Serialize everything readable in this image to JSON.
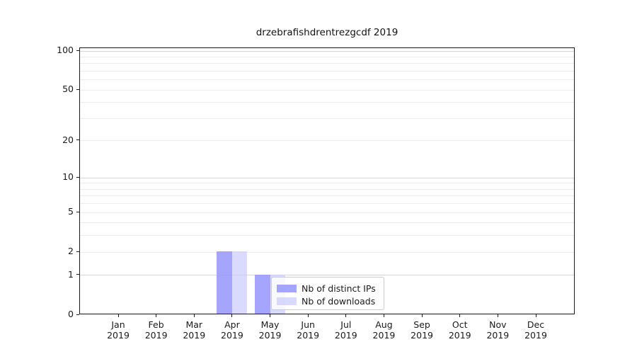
{
  "chart_data": {
    "type": "bar",
    "title": "drzebrafishdrentrezgcdf 2019",
    "x": {
      "months": [
        "Jan",
        "Feb",
        "Mar",
        "Apr",
        "May",
        "Jun",
        "Jul",
        "Aug",
        "Sep",
        "Oct",
        "Nov",
        "Dec"
      ],
      "year": "2019"
    },
    "series": [
      {
        "name": "Nb of distinct IPs",
        "color": "rgba(153,153,255,0.88)",
        "values": [
          0,
          0,
          0,
          2,
          1,
          0,
          0,
          0,
          0,
          0,
          0,
          0
        ]
      },
      {
        "name": "Nb of downloads",
        "color": "rgba(204,204,255,0.72)",
        "values": [
          0,
          0,
          0,
          2,
          1,
          0,
          0,
          0,
          0,
          0,
          0,
          0
        ]
      }
    ],
    "y_axis": {
      "scale": "log10(1+value)",
      "labeled_ticks": [
        0,
        1,
        2,
        5,
        10,
        20,
        50,
        100
      ],
      "minor_gridlines": [
        2,
        3,
        4,
        5,
        6,
        7,
        8,
        9,
        20,
        30,
        40,
        50,
        60,
        70,
        80,
        90
      ],
      "major_gridlines": [
        1,
        10,
        100
      ],
      "ylim": [
        0,
        106
      ]
    },
    "legend": {
      "position": "inside-lower-middle"
    },
    "grid": true
  },
  "colors": {
    "axis": "#1a1a1a",
    "grid_minor": "#ececec",
    "grid_major": "#d4d4d4",
    "background": "#ffffff",
    "legend_border": "#cccccc"
  }
}
